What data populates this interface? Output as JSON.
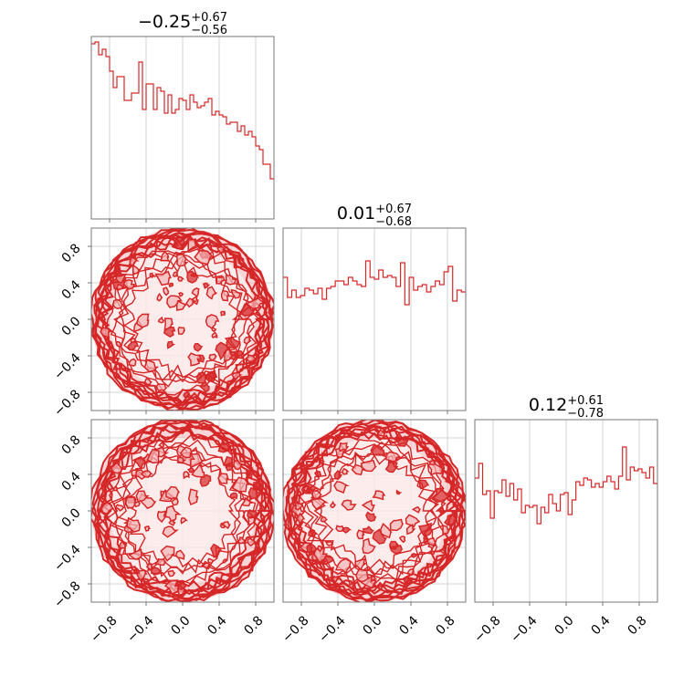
{
  "colors": {
    "series": "#d62728",
    "fill": "#f2b3b5",
    "axis": "#777777",
    "grid": "#c8c8c8",
    "text": "#000000"
  },
  "chart_data": {
    "type": "corner",
    "ticks": {
      "values": [
        -0.8,
        -0.4,
        0.0,
        0.4,
        0.8
      ],
      "labels": [
        "−0.8",
        "−0.4",
        "0.0",
        "0.4",
        "0.8"
      ]
    },
    "range": [
      -1.0,
      1.0
    ],
    "grid": true,
    "marginals": [
      {
        "median": "−0.25",
        "plus": "+0.67",
        "minus": "−0.56",
        "values": [
          0.96,
          0.97,
          0.9,
          0.93,
          0.89,
          0.81,
          0.72,
          0.78,
          0.78,
          0.65,
          0.65,
          0.69,
          0.69,
          0.86,
          0.6,
          0.74,
          0.74,
          0.6,
          0.72,
          0.7,
          0.58,
          0.68,
          0.58,
          0.6,
          0.66,
          0.65,
          0.6,
          0.68,
          0.64,
          0.61,
          0.62,
          0.64,
          0.66,
          0.57,
          0.59,
          0.57,
          0.56,
          0.52,
          0.53,
          0.53,
          0.48,
          0.51,
          0.46,
          0.48,
          0.45,
          0.4,
          0.38,
          0.3,
          0.3,
          0.22
        ]
      },
      {
        "median": "0.01",
        "plus": "+0.67",
        "minus": "−0.68",
        "values": [
          0.73,
          0.62,
          0.66,
          0.62,
          0.63,
          0.67,
          0.66,
          0.64,
          0.67,
          0.61,
          0.67,
          0.68,
          0.71,
          0.71,
          0.69,
          0.73,
          0.71,
          0.69,
          0.68,
          0.82,
          0.73,
          0.72,
          0.77,
          0.73,
          0.74,
          0.73,
          0.68,
          0.81,
          0.58,
          0.73,
          0.66,
          0.68,
          0.69,
          0.65,
          0.68,
          0.71,
          0.69,
          0.76,
          0.79,
          0.6,
          0.66,
          0.65
        ]
      },
      {
        "median": "0.12",
        "plus": "+0.61",
        "minus": "−0.78",
        "values": [
          0.68,
          0.76,
          0.59,
          0.61,
          0.46,
          0.61,
          0.6,
          0.67,
          0.58,
          0.65,
          0.56,
          0.62,
          0.49,
          0.53,
          0.52,
          0.53,
          0.43,
          0.52,
          0.49,
          0.59,
          0.54,
          0.5,
          0.59,
          0.6,
          0.48,
          0.56,
          0.66,
          0.64,
          0.68,
          0.67,
          0.63,
          0.65,
          0.63,
          0.66,
          0.69,
          0.66,
          0.62,
          0.69,
          0.85,
          0.67,
          0.74,
          0.72,
          0.73,
          0.71,
          0.68,
          0.74,
          0.65
        ]
      }
    ],
    "pairs": [
      {
        "row": 1,
        "col": 0,
        "shape": "disk",
        "seed": 11
      },
      {
        "row": 2,
        "col": 0,
        "shape": "disk",
        "seed": 29
      },
      {
        "row": 2,
        "col": 1,
        "shape": "disk",
        "seed": 47
      }
    ]
  }
}
